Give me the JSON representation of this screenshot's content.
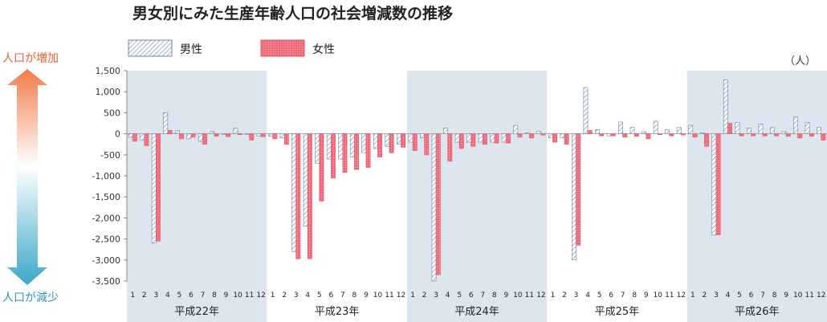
{
  "chart_data": {
    "type": "bar",
    "title": "男女別にみた生産年齢人口の社会増減数の推移",
    "unit": "（人）",
    "ylim": [
      -3500,
      1500
    ],
    "yticks": [
      1500,
      1000,
      500,
      0,
      -500,
      -1000,
      -1500,
      -2000,
      -2500,
      -3000,
      -3500
    ],
    "ytick_labels": [
      "1,500",
      "1,000",
      "500",
      "0",
      "-500",
      "-1,000",
      "-1,500",
      "-2,000",
      "-2,500",
      "-3,000",
      "-3,500"
    ],
    "month_labels": [
      "1",
      "2",
      "3",
      "4",
      "5",
      "6",
      "7",
      "8",
      "9",
      "10",
      "11",
      "12"
    ],
    "years": [
      "平成22年",
      "平成23年",
      "平成24年",
      "平成25年",
      "平成26年"
    ],
    "legend": {
      "male": "男性",
      "female": "女性"
    },
    "series": [
      {
        "name": "男性",
        "color": "#8aa0c0",
        "values": [
          -80,
          -150,
          -2600,
          500,
          80,
          -120,
          -180,
          50,
          -20,
          130,
          -20,
          -50,
          -60,
          -100,
          -2800,
          -2200,
          -700,
          -600,
          -600,
          -550,
          -450,
          -350,
          -300,
          -250,
          -200,
          -100,
          -3500,
          130,
          -200,
          -200,
          -200,
          -200,
          -200,
          200,
          20,
          60,
          -100,
          -100,
          -3000,
          1100,
          100,
          -50,
          280,
          150,
          50,
          300,
          100,
          150,
          200,
          20,
          -2400,
          1280,
          270,
          130,
          230,
          150,
          50,
          400,
          270,
          150
        ]
      },
      {
        "name": "女性",
        "color": "#f06b7b",
        "values": [
          -180,
          -280,
          -2550,
          80,
          -120,
          -80,
          -250,
          -60,
          -70,
          -20,
          -150,
          -70,
          -120,
          -250,
          -2970,
          -2970,
          -1600,
          -1050,
          -920,
          -850,
          -800,
          -550,
          -450,
          -320,
          -400,
          -500,
          -3350,
          -650,
          -350,
          -300,
          -250,
          -220,
          -220,
          -80,
          -100,
          -30,
          -200,
          -250,
          -2650,
          80,
          -50,
          -50,
          -80,
          -60,
          -120,
          -20,
          -50,
          -30,
          -80,
          -300,
          -2400,
          250,
          -50,
          -50,
          -50,
          -50,
          -60,
          -100,
          -60,
          -150
        ]
      }
    ]
  },
  "side_labels": {
    "increase": "人口が増加",
    "decrease": "人口が減少"
  },
  "colors": {
    "band": "#dde5ee",
    "axis": "#888888",
    "arrow_top": "#f07c4a",
    "arrow_bottom": "#3aa8c8"
  }
}
